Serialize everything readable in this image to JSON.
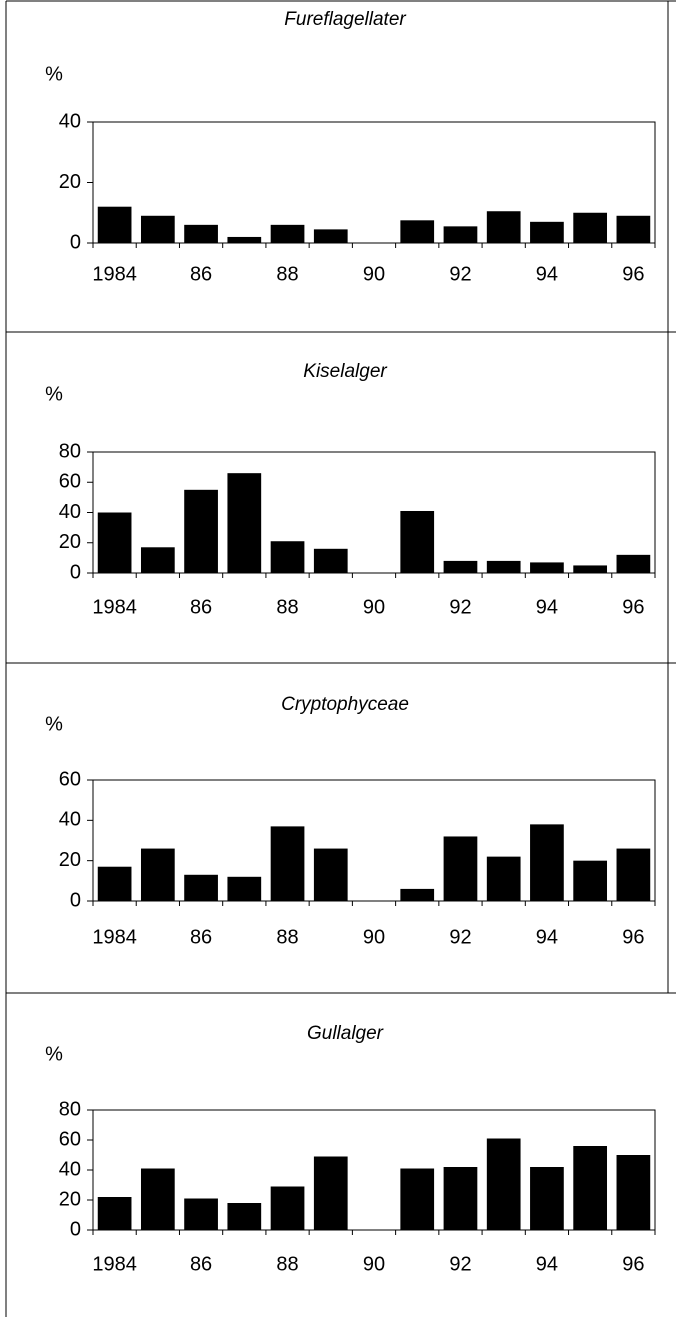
{
  "chart_data": [
    {
      "type": "bar",
      "title": "Fureflagellater",
      "y_label": "%",
      "categories": [
        "1984",
        null,
        "86",
        null,
        "88",
        null,
        "90",
        null,
        "92",
        null,
        "94",
        null,
        "96"
      ],
      "values": [
        12,
        9,
        6,
        2,
        6,
        4.5,
        null,
        7.5,
        5.5,
        10.5,
        7,
        10,
        9
      ],
      "color": "#000000",
      "ylim": [
        0,
        40
      ],
      "yticks": [
        0,
        20,
        40
      ]
    },
    {
      "type": "bar",
      "title": "Kiselalger",
      "y_label": "%",
      "categories": [
        "1984",
        null,
        "86",
        null,
        "88",
        null,
        "90",
        null,
        "92",
        null,
        "94",
        null,
        "96"
      ],
      "values": [
        40,
        17,
        55,
        66,
        21,
        16,
        null,
        41,
        8,
        8,
        7,
        5,
        12
      ],
      "color": "#000000",
      "ylim": [
        0,
        80
      ],
      "yticks": [
        0,
        20,
        40,
        60,
        80
      ]
    },
    {
      "type": "bar",
      "title": "Cryptophyceae",
      "y_label": "%",
      "categories": [
        "1984",
        null,
        "86",
        null,
        "88",
        null,
        "90",
        null,
        "92",
        null,
        "94",
        null,
        "96"
      ],
      "values": [
        17,
        26,
        13,
        12,
        37,
        26,
        null,
        6,
        32,
        22,
        38,
        20,
        26
      ],
      "color": "#000000",
      "ylim": [
        0,
        60
      ],
      "yticks": [
        0,
        20,
        40,
        60
      ]
    },
    {
      "type": "bar",
      "title": "Gullalger",
      "y_label": "%",
      "categories": [
        "1984",
        null,
        "86",
        null,
        "88",
        null,
        "90",
        null,
        "92",
        null,
        "94",
        null,
        "96"
      ],
      "values": [
        22,
        41,
        21,
        18,
        29,
        49,
        null,
        41,
        42,
        61,
        42,
        56,
        50
      ],
      "color": "#000000",
      "ylim": [
        0,
        80
      ],
      "yticks": [
        0,
        20,
        40,
        60,
        80
      ]
    }
  ]
}
